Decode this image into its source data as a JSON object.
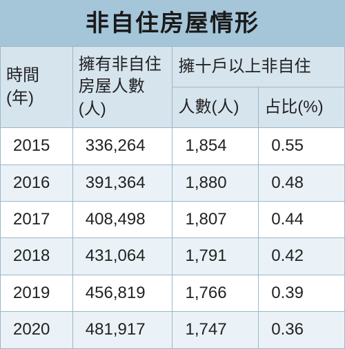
{
  "title": "非自住房屋情形",
  "colors": {
    "title_bg": "#a5c5d9",
    "title_text": "#1a1a1a",
    "header_bg": "#d6e4ee",
    "header_text": "#222222",
    "row_bg": "#ffffff",
    "row_alt_bg": "#eaf2f7",
    "border": "#9bb6c7",
    "text": "#222222"
  },
  "headers": {
    "year": "時間\n(年)",
    "owners": "擁有非自住房屋人數(人)",
    "ten_plus_group": "擁十戶以上非自住",
    "people": "人數(人)",
    "ratio": "占比(%)"
  },
  "rows": [
    {
      "year": "2015",
      "owners": "336,264",
      "people": "1,854",
      "ratio": "0.55"
    },
    {
      "year": "2016",
      "owners": "391,364",
      "people": "1,880",
      "ratio": "0.48"
    },
    {
      "year": "2017",
      "owners": "408,498",
      "people": "1,807",
      "ratio": "0.44"
    },
    {
      "year": "2018",
      "owners": "431,064",
      "people": "1,791",
      "ratio": "0.42"
    },
    {
      "year": "2019",
      "owners": "456,819",
      "people": "1,766",
      "ratio": "0.39"
    },
    {
      "year": "2020",
      "owners": "481,917",
      "people": "1,747",
      "ratio": "0.36"
    }
  ]
}
